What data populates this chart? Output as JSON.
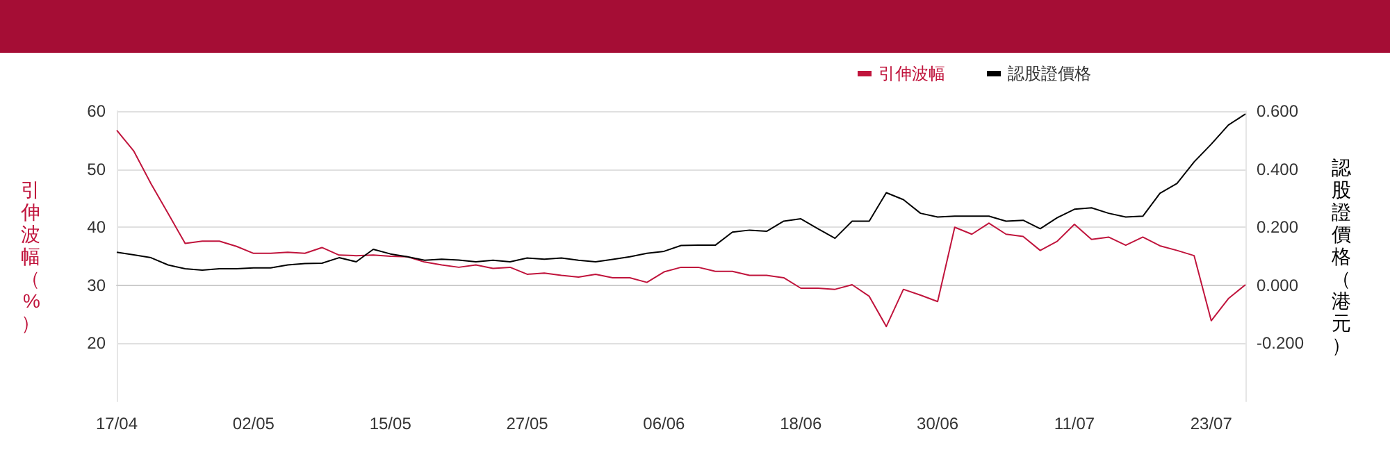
{
  "chart_data": {
    "type": "line",
    "categories": [
      "17/04",
      null,
      null,
      null,
      null,
      null,
      null,
      null,
      "02/05",
      null,
      null,
      null,
      null,
      null,
      null,
      null,
      "15/05",
      null,
      null,
      null,
      null,
      null,
      null,
      null,
      "27/05",
      null,
      null,
      null,
      null,
      null,
      null,
      null,
      "06/06",
      null,
      null,
      null,
      null,
      null,
      null,
      null,
      "18/06",
      null,
      null,
      null,
      null,
      null,
      null,
      null,
      "30/06",
      null,
      null,
      null,
      null,
      null,
      null,
      null,
      "11/07",
      null,
      null,
      null,
      null,
      null,
      null,
      null,
      "23/07",
      null,
      null
    ],
    "ylabel": "引伸波幅（%）",
    "y2label": "認股證價格（港元）",
    "series": [
      {
        "name": "引伸波幅",
        "color": "#c0143c",
        "values": [
          56.7,
          53.1,
          47.5,
          42.4,
          37.2,
          37.6,
          37.6,
          36.7,
          35.5,
          35.5,
          35.7,
          35.5,
          36.5,
          35.2,
          35.1,
          35.2,
          35.0,
          34.9,
          34.0,
          33.5,
          33.1,
          33.5,
          32.9,
          33.1,
          31.9,
          32.1,
          31.7,
          31.4,
          31.9,
          31.3,
          31.3,
          30.5,
          32.3,
          33.1,
          33.1,
          32.4,
          32.4,
          31.7,
          31.7,
          31.3,
          29.5,
          29.5,
          29.3,
          30.1,
          28.1,
          22.9,
          29.3,
          28.3,
          27.2,
          40.0,
          38.8,
          40.7,
          38.8,
          38.4,
          36.0,
          37.6,
          40.5,
          37.9,
          38.3,
          36.9,
          38.3,
          36.8,
          36.0,
          35.1,
          23.9,
          27.7,
          30.1
        ]
      },
      {
        "name": "認股證價格",
        "color": "#000000",
        "axis": "y2",
        "values": [
          0.114,
          0.105,
          0.095,
          0.07,
          0.057,
          0.052,
          0.057,
          0.057,
          0.06,
          0.06,
          0.07,
          0.075,
          0.076,
          0.095,
          0.081,
          0.124,
          0.108,
          0.098,
          0.086,
          0.09,
          0.087,
          0.081,
          0.086,
          0.081,
          0.094,
          0.09,
          0.094,
          0.086,
          0.081,
          0.089,
          0.098,
          0.11,
          0.117,
          0.137,
          0.138,
          0.138,
          0.183,
          0.19,
          0.186,
          0.221,
          0.229,
          0.195,
          0.162,
          0.221,
          0.221,
          0.319,
          0.295,
          0.248,
          0.235,
          0.238,
          0.238,
          0.238,
          0.221,
          0.224,
          0.195,
          0.233,
          0.262,
          0.267,
          0.248,
          0.235,
          0.238,
          0.317,
          0.351,
          0.425,
          0.486,
          0.552,
          0.59
        ]
      }
    ],
    "ylim": [
      10,
      60
    ],
    "yticks": [
      20,
      30,
      40,
      50,
      60
    ],
    "y2lim": [
      -0.4,
      0.6
    ],
    "y2ticks": [
      {
        "value": -0.2,
        "label": "-0.200"
      },
      {
        "value": 0,
        "label": "0.000"
      },
      {
        "value": 0.2,
        "label": "0.200"
      },
      {
        "value": 0.4,
        "label": "0.400"
      },
      {
        "value": 0.6,
        "label": "0.600"
      }
    ],
    "grid": "y",
    "legend": "top right",
    "marker": "none",
    "line_style": "solid"
  }
}
